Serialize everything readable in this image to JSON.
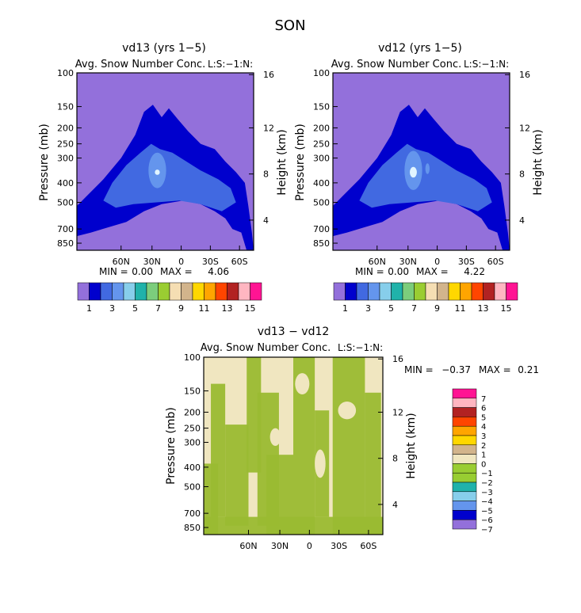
{
  "page_title": "SON",
  "colors": {
    "background_fill": "#9370DB",
    "snow_palette": [
      "#9370DB",
      "#0000CD",
      "#4169E1",
      "#6495ED",
      "#87CEEB",
      "#20B2AA",
      "#7CCD7C",
      "#9ACD32",
      "#F5DEB3",
      "#D2B48C",
      "#FFD700",
      "#FFA500",
      "#FF4500",
      "#B22222",
      "#FFB6C1",
      "#FF1493"
    ],
    "diff_palette": [
      "#9370DB",
      "#0000CD",
      "#6495ED",
      "#87CEEB",
      "#20B2AA",
      "#98CD32",
      "#9ACD32",
      "#F0E6C0",
      "#D2B48C",
      "#FFD700",
      "#FFA500",
      "#FF4500",
      "#B22222",
      "#FFB6C1",
      "#FF1493"
    ]
  },
  "chart_data": [
    {
      "type": "heatmap",
      "title": "vd13 (yrs 1−5)",
      "subtitle": "Avg. Snow Number Conc.",
      "corner_label": "L:S:−1:N:",
      "ylabel": "Pressure (mb)",
      "y2label": "Height (km)",
      "y_ticks": [
        "100",
        "150",
        "200",
        "250",
        "300",
        "400",
        "500",
        "700",
        "850"
      ],
      "y2_ticks": [
        "16",
        "12",
        "8",
        "4"
      ],
      "x_ticks": [
        "60N",
        "30N",
        "0",
        "30S",
        "60S"
      ],
      "min_label": "MIN =",
      "min_value": "0.00",
      "max_label": "MAX =",
      "max_value": "4.06",
      "max": 4.06,
      "colorbar_labels": [
        "1",
        "3",
        "5",
        "7",
        "9",
        "11",
        "13",
        "15"
      ]
    },
    {
      "type": "heatmap",
      "title": "vd12 (yrs 1−5)",
      "subtitle": "Avg. Snow Number Conc.",
      "corner_label": "L:S:−1:N:",
      "ylabel": "Pressure (mb)",
      "y2label": "Height (km)",
      "y_ticks": [
        "100",
        "150",
        "200",
        "250",
        "300",
        "400",
        "500",
        "700",
        "850"
      ],
      "y2_ticks": [
        "16",
        "12",
        "8",
        "4"
      ],
      "x_ticks": [
        "60N",
        "30N",
        "0",
        "30S",
        "60S"
      ],
      "min_label": "MIN =",
      "min_value": "0.00",
      "max_label": "MAX =",
      "max_value": "4.22",
      "max": 4.22,
      "colorbar_labels": [
        "1",
        "3",
        "5",
        "7",
        "9",
        "11",
        "13",
        "15"
      ]
    },
    {
      "type": "heatmap",
      "title": "vd13 − vd12",
      "subtitle": "Avg. Snow Number Conc.",
      "corner_label": "L:S:−1:N:",
      "ylabel": "Pressure (mb)",
      "y2label": "Height (km)",
      "y_ticks": [
        "100",
        "150",
        "200",
        "250",
        "300",
        "400",
        "500",
        "700",
        "850"
      ],
      "y2_ticks": [
        "16",
        "12",
        "8",
        "4"
      ],
      "x_ticks": [
        "60N",
        "30N",
        "0",
        "30S",
        "60S"
      ],
      "min_label": "MIN =",
      "min_value": "−0.37",
      "max_label": "MAX =",
      "max_value": "0.21",
      "min": -0.37,
      "max": 0.21,
      "colorbar_labels": [
        "7",
        "6",
        "5",
        "4",
        "3",
        "2",
        "1",
        "0",
        "−1",
        "−2",
        "−3",
        "−4",
        "−5",
        "−6",
        "−7"
      ]
    }
  ]
}
